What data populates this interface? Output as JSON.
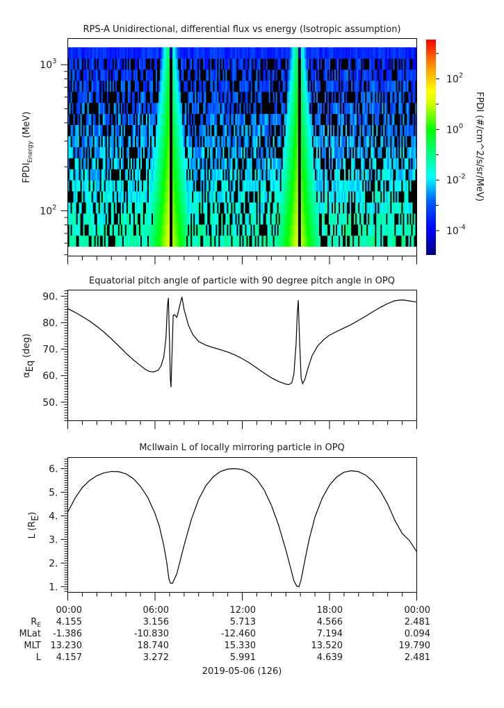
{
  "chart_data": [
    {
      "type": "heatmap",
      "title": "RPS-A Unidirectional, differential flux vs energy (Isotropic assumption)",
      "ylabel_main": "FPDI",
      "ylabel_sub": "Energy",
      "ylabel_unit": "(MeV)",
      "yscale": "log",
      "ylim": [
        49,
        1510
      ],
      "yticks": [
        {
          "base": "10",
          "exp": "3",
          "value": 1000
        },
        {
          "base": "10",
          "exp": "2",
          "value": 100
        }
      ],
      "data_energy_range": [
        57,
        1315
      ],
      "energy_bins": 18,
      "xlim_hours": [
        0,
        24
      ],
      "colorbar": {
        "label": "FPDI (#/cm^2/s/sr/MeV)",
        "scale": "log",
        "range_exp": [
          -4.96,
          3.55
        ],
        "ticks": [
          {
            "base": "10",
            "exp": "2",
            "value": 2
          },
          {
            "base": "10",
            "exp": "0",
            "value": 0
          },
          {
            "base": "10",
            "exp": "-2",
            "value": -2
          },
          {
            "base": "10",
            "exp": "-4",
            "value": -4
          }
        ],
        "colormap": "rainbow"
      },
      "features": [
        {
          "name": "inner belt crossing 1",
          "center_hour": 7.0,
          "gap_hour": 7.1,
          "peak_log_flux": 1.3
        },
        {
          "name": "inner belt crossing 2",
          "center_hour": 15.85,
          "gap_hour": 15.95,
          "peak_log_flux": 1.3
        }
      ],
      "background_log_flux_range": [
        -3.5,
        -1.3
      ]
    },
    {
      "type": "line",
      "title": "Equatorial pitch angle of particle with 90 degree pitch angle in OPQ",
      "ylabel_main": "α",
      "ylabel_sub": "Eq",
      "ylabel_unit": "(deg)",
      "ylim": [
        43.0,
        92.3
      ],
      "yticks": [
        "90.",
        "80.",
        "70.",
        "60.",
        "50."
      ],
      "ytick_values": [
        90,
        80,
        70,
        60,
        50
      ],
      "xlim_hours": [
        0,
        24
      ],
      "series": [
        {
          "name": "alpha_eq",
          "x": [
            0,
            0.5,
            1,
            1.5,
            2,
            2.5,
            3,
            3.5,
            4,
            4.5,
            5,
            5.3,
            5.6,
            5.9,
            6.2,
            6.4,
            6.6,
            6.75,
            6.85,
            6.92,
            7.0,
            7.05,
            7.1,
            7.18,
            7.25,
            7.35,
            7.5,
            7.6,
            7.7,
            7.85,
            8.0,
            8.3,
            8.6,
            9.0,
            9.5,
            10,
            10.5,
            11,
            11.5,
            12,
            12.5,
            13,
            13.5,
            14,
            14.5,
            15,
            15.2,
            15.4,
            15.55,
            15.7,
            15.78,
            15.85,
            15.95,
            16.05,
            16.15,
            16.3,
            16.5,
            16.8,
            17.2,
            17.6,
            18,
            18.5,
            19,
            19.5,
            20,
            20.5,
            21,
            21.5,
            22,
            22.5,
            23,
            23.5,
            24
          ],
          "y": [
            85.3,
            83.9,
            82.3,
            80.6,
            78.6,
            76.4,
            73.9,
            71.2,
            68.5,
            66.0,
            63.8,
            62.5,
            61.6,
            61.4,
            62.0,
            63.5,
            67.0,
            74.0,
            86.0,
            89.3,
            72.0,
            59.0,
            55.7,
            70.0,
            82.8,
            83.0,
            82.0,
            84.0,
            86.5,
            89.7,
            85.0,
            79.0,
            75.5,
            72.9,
            71.5,
            70.6,
            69.8,
            68.9,
            67.8,
            66.4,
            64.8,
            62.9,
            61.0,
            59.2,
            57.8,
            56.8,
            56.6,
            57.3,
            60.5,
            72.0,
            83.0,
            88.5,
            72.0,
            59.0,
            57.0,
            58.5,
            62.5,
            67.5,
            71.3,
            73.6,
            75.3,
            76.7,
            78.0,
            79.3,
            80.9,
            82.5,
            84.2,
            85.8,
            87.2,
            88.3,
            88.6,
            88.2,
            87.8
          ]
        }
      ]
    },
    {
      "type": "line",
      "title": "McIlwain L of locally mirroring particle in OPQ",
      "ylabel_main": "L (R",
      "ylabel_sub": "E",
      "ylabel_unit": ")",
      "ylim": [
        0.76,
        6.47
      ],
      "yticks": [
        "6.",
        "5.",
        "4.",
        "3.",
        "2.",
        "1."
      ],
      "ytick_values": [
        6,
        5,
        4,
        3,
        2,
        1
      ],
      "xlim_hours": [
        0,
        24
      ],
      "series": [
        {
          "name": "L",
          "x": [
            0,
            0.5,
            1,
            1.5,
            2,
            2.5,
            3,
            3.5,
            4,
            4.5,
            5,
            5.5,
            6,
            6.3,
            6.6,
            6.8,
            6.95,
            7.05,
            7.2,
            7.5,
            8,
            8.5,
            9,
            9.5,
            10,
            10.5,
            11,
            11.5,
            12,
            12.5,
            13,
            13.5,
            14,
            14.5,
            15,
            15.3,
            15.55,
            15.75,
            15.9,
            16.05,
            16.3,
            16.6,
            17,
            17.5,
            18,
            18.5,
            19,
            19.5,
            20,
            20.5,
            21,
            21.5,
            22,
            22.5,
            23,
            23.5,
            24
          ],
          "y": [
            4.157,
            4.75,
            5.2,
            5.5,
            5.7,
            5.82,
            5.88,
            5.87,
            5.78,
            5.58,
            5.25,
            4.78,
            4.1,
            3.55,
            2.75,
            2.05,
            1.35,
            1.15,
            1.14,
            1.55,
            2.75,
            3.85,
            4.7,
            5.28,
            5.65,
            5.88,
            5.98,
            6.0,
            5.96,
            5.82,
            5.55,
            5.1,
            4.45,
            3.6,
            2.55,
            1.85,
            1.25,
            1.02,
            1.0,
            1.3,
            2.1,
            3.0,
            3.95,
            4.75,
            5.3,
            5.65,
            5.85,
            5.91,
            5.87,
            5.72,
            5.45,
            5.05,
            4.5,
            3.8,
            3.25,
            2.95,
            2.481
          ]
        }
      ]
    }
  ],
  "time_axis": {
    "tick_labels": [
      "00:00",
      "06:00",
      "12:00",
      "18:00",
      "00:00"
    ],
    "tick_hours": [
      0,
      6,
      12,
      18,
      24
    ],
    "date_label": "2019-05-06 (126)"
  },
  "ephemeris": {
    "rows": [
      {
        "label": "R",
        "label_sub": "E",
        "values": [
          "4.155",
          "3.156",
          "5.713",
          "4.566",
          "2.481"
        ]
      },
      {
        "label": "MLat",
        "label_sub": "",
        "values": [
          "-1.386",
          "-10.830",
          "-12.460",
          "7.194",
          "0.094"
        ]
      },
      {
        "label": "MLT",
        "label_sub": "",
        "values": [
          "13.230",
          "18.740",
          "15.330",
          "13.520",
          "19.790"
        ]
      },
      {
        "label": "L",
        "label_sub": "",
        "values": [
          "4.157",
          "3.272",
          "5.991",
          "4.639",
          "2.481"
        ]
      }
    ]
  },
  "colors": {
    "line": "#000000",
    "axes": "#000000",
    "text": "#1a1a1a",
    "missing_data": "#000000"
  }
}
